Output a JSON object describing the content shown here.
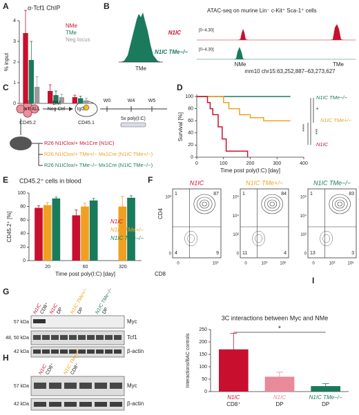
{
  "chart_data": [
    {
      "panel": "A",
      "type": "bar",
      "title": "α-Tcf1 ChIP",
      "y_label": "% input",
      "categories": [
        "mT-ALL",
        "Neg Ctrl",
        "IgG"
      ],
      "series": [
        {
          "name": "NMe",
          "color": "#c8102e",
          "values": [
            3.4,
            0.6,
            0.3
          ],
          "errors": [
            1.1,
            0.3,
            0.1
          ]
        },
        {
          "name": "TMe",
          "color": "#1a7a5c",
          "values": [
            2.1,
            0.4,
            0.25
          ],
          "errors": [
            0.9,
            0.2,
            0.1
          ]
        },
        {
          "name": "Neg locus",
          "color": "#9a9a9a",
          "values": [
            0.8,
            0.3,
            0.15
          ],
          "errors": [
            0.5,
            0.15,
            0.1
          ]
        }
      ],
      "ylim": [
        0,
        4
      ],
      "yticks": [
        0,
        1,
        2,
        3,
        4
      ],
      "legend": "upper right"
    },
    {
      "panel": "D",
      "type": "line",
      "x_label": "Time post poly(I:C) [day]",
      "y_label": "Survival [%]",
      "xlim": [
        0,
        400
      ],
      "xticks": [
        0,
        100,
        200,
        300,
        400
      ],
      "ylim": [
        0,
        100
      ],
      "yticks": [
        0,
        20,
        40,
        60,
        80,
        100
      ],
      "series": [
        {
          "name": "N1IC TMe−/−",
          "color": "#1a7a5c",
          "x": [
            0,
            350
          ],
          "values": [
            100,
            100
          ]
        },
        {
          "name": "N1IC TMe+/−",
          "color": "#f0a020",
          "x": [
            0,
            100,
            100,
            120,
            120,
            160,
            160,
            200,
            200,
            250,
            250,
            350
          ],
          "values": [
            100,
            100,
            90,
            90,
            80,
            80,
            70,
            70,
            65,
            65,
            60,
            60
          ]
        },
        {
          "name": "N1IC",
          "color": "#c8102e",
          "x": [
            0,
            40,
            40,
            50,
            50,
            60,
            60,
            80,
            80,
            95,
            95,
            110,
            110,
            190,
            190
          ],
          "values": [
            100,
            100,
            90,
            90,
            80,
            80,
            70,
            70,
            50,
            50,
            30,
            30,
            10,
            10,
            0
          ]
        }
      ],
      "significance": [
        "*",
        "****",
        "***"
      ]
    },
    {
      "panel": "E",
      "type": "bar",
      "title": "CD45.2⁺ cells in blood",
      "y_label": "CD45.2⁺ [%]",
      "x_label": "Time post poly(I:C) [day]",
      "categories": [
        "20",
        "60",
        "320"
      ],
      "series": [
        {
          "name": "N1IC",
          "color": "#c8102e",
          "values": [
            78,
            67,
            null
          ],
          "errors": [
            3,
            8,
            null
          ]
        },
        {
          "name": "N1IC TMe+/−",
          "color": "#f0a020",
          "values": [
            82,
            80,
            80
          ],
          "errors": [
            4,
            5,
            15
          ]
        },
        {
          "name": "N1IC TMe−/−",
          "color": "#1a7a5c",
          "values": [
            92,
            89,
            93
          ],
          "errors": [
            2,
            3,
            3
          ]
        }
      ],
      "ylim": [
        0,
        100
      ],
      "yticks": [
        0,
        20,
        40,
        60,
        80,
        100
      ],
      "legend": "right"
    },
    {
      "panel": "I",
      "type": "bar",
      "title": "3C interactions between Myc and NMe",
      "y_label": "Interactions/BAC controls",
      "categories": [
        [
          "N1IC",
          "CD8⁺"
        ],
        [
          "N1IC",
          "DP"
        ],
        [
          "N1IC TMe−/−",
          "DP"
        ]
      ],
      "colors": [
        "#c8102e",
        "#e88a9a",
        "#1a7a5c"
      ],
      "values": [
        170,
        60,
        22
      ],
      "errors": [
        65,
        18,
        10
      ],
      "ylim": [
        0,
        250
      ],
      "yticks": [
        0,
        50,
        100,
        150,
        200,
        250
      ],
      "significance": "*"
    }
  ],
  "panels": {
    "B": {
      "label": "B",
      "hist_label": "TMe",
      "title": "ATAC-seq on murine Lin⁻ c-Kit⁺ Sca-1⁺ cells",
      "tracks": [
        {
          "name": "N1IC",
          "range": "[0–4.30]"
        },
        {
          "name": "N1IC TMe−/−",
          "range": "[0–4.30]"
        }
      ],
      "peaks": [
        "NMe",
        "TMe"
      ],
      "locus": "mm10 chr15:63,252,887–63,273,627"
    },
    "C": {
      "label": "C",
      "donor": "CD45.2",
      "transfer": "BM",
      "recipient": "CD45.1",
      "weeks": [
        "W0",
        "W4",
        "W5"
      ],
      "treatment": "5x poly(I:C)",
      "genotypes": [
        {
          "text": "R26 N1IClox/+ Mx1Cre (N1IC)",
          "color": "#c8102e"
        },
        {
          "text": "R26 N1IClox/+ TMe+/− Mx1Cre (N1IC TMe+/−)",
          "color": "#f0a020"
        },
        {
          "text": "R26 N1IClox/+ TMe−/− Mx1Cre (N1IC TMe−/−)",
          "color": "#1a7a5c"
        }
      ]
    },
    "F": {
      "label": "F",
      "x_label": "CD8",
      "y_label": "CD4",
      "plots": [
        {
          "title": "N1IC",
          "color": "#c8102e",
          "quadrants": [
            1,
            87,
            4,
            9
          ],
          "yticks": [
            "10³",
            "0"
          ],
          "xticks": [
            "0",
            "10³"
          ]
        },
        {
          "title": "N1IC TMe+/−",
          "color": "#f0a020",
          "quadrants": [
            1,
            84,
            11,
            4
          ],
          "yticks": [
            "10⁶",
            "10⁴",
            "10²",
            "0"
          ],
          "xticks": [
            "0",
            "10³",
            "10⁶"
          ]
        },
        {
          "title": "N1IC TMe−/−",
          "color": "#1a7a5c",
          "quadrants": [
            1,
            83,
            13,
            3
          ],
          "yticks": [
            "10⁶",
            "10⁴",
            "10²",
            "0"
          ],
          "xticks": [
            "0",
            "10³",
            "10⁶"
          ]
        }
      ]
    },
    "G": {
      "label": "G",
      "lanes": [
        {
          "text": "N1IC",
          "color": "#c8102e"
        },
        {
          "text": "CD8⁺",
          "color": "#222222"
        },
        {
          "text": "N1IC",
          "color": "#c8102e"
        },
        {
          "text": "DP",
          "color": "#222222"
        },
        {
          "text": "N1IC TMe+/−",
          "color": "#f0a020"
        },
        {
          "text": "DP",
          "color": "#222222"
        },
        {
          "text": "N1IC TMe−/−",
          "color": "#1a7a5c"
        },
        {
          "text": "DP",
          "color": "#222222"
        }
      ],
      "rows": [
        {
          "kda": "57 kDa",
          "protein": "Myc"
        },
        {
          "kda": "48, 50 kDa",
          "protein": "Tcf1"
        },
        {
          "kda": "42 kDa",
          "protein": "β-actin"
        }
      ]
    },
    "H": {
      "label": "H",
      "lanes": [
        {
          "text": "N1IC",
          "color": "#c8102e"
        },
        {
          "text": "CD8⁺",
          "color": "#222222"
        },
        {
          "text": "N1IC TMe+/−",
          "color": "#f0a020"
        },
        {
          "text": "CD8⁺",
          "color": "#222222"
        }
      ],
      "rows": [
        {
          "kda": "57 kDa",
          "protein": "Myc"
        },
        {
          "kda": "42 kDa",
          "protein": "β-actin"
        }
      ]
    }
  }
}
